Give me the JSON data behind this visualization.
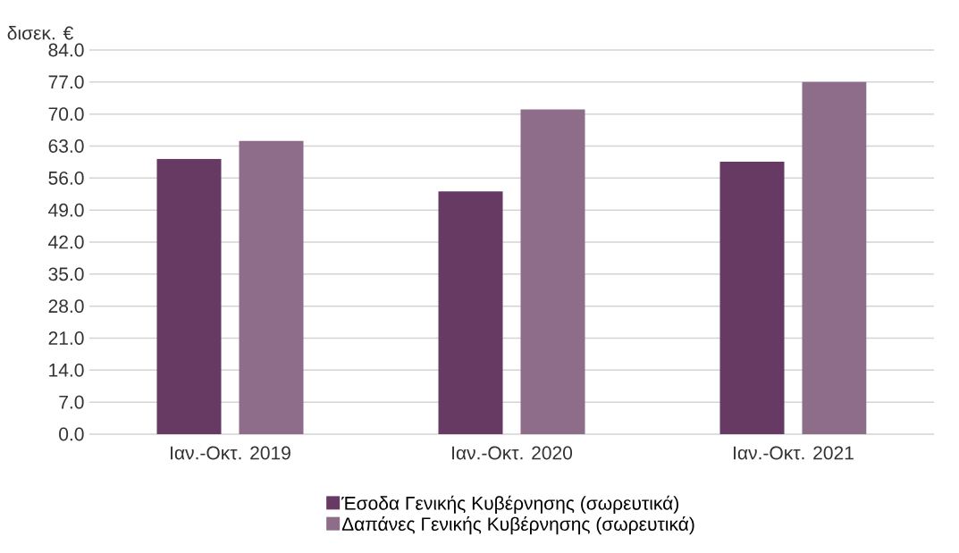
{
  "chart_data": {
    "type": "bar",
    "ylabel": "δισεκ. €",
    "categories": [
      "Ιαν.-Οκτ. 2019",
      "Ιαν.-Οκτ. 2020",
      "Ιαν.-Οκτ. 2021"
    ],
    "series": [
      {
        "name": "Έσοδα Γενικής Κυβέρνησης (σωρευτικά)",
        "color": "#673a63",
        "values": [
          60.2,
          53.1,
          59.6
        ]
      },
      {
        "name": "Δαπάνες Γενικής Κυβέρνησης (σωρευτικά)",
        "color": "#8d6d8a",
        "values": [
          64.1,
          71.0,
          77.0
        ]
      }
    ],
    "ylim": [
      0,
      84
    ],
    "yticks": [
      {
        "value": 0,
        "label": "0.0"
      },
      {
        "value": 7,
        "label": "7.0"
      },
      {
        "value": 14,
        "label": "14.0"
      },
      {
        "value": 21,
        "label": "21.0"
      },
      {
        "value": 28,
        "label": "28.0"
      },
      {
        "value": 35,
        "label": "35.0"
      },
      {
        "value": 42,
        "label": "42.0"
      },
      {
        "value": 49,
        "label": "49.0"
      },
      {
        "value": 56,
        "label": "56.0"
      },
      {
        "value": 63,
        "label": "63.0"
      },
      {
        "value": 70,
        "label": "70.0"
      },
      {
        "value": 77,
        "label": "77.0"
      },
      {
        "value": 84,
        "label": "84.0"
      }
    ],
    "grid": "y",
    "legend": "bottom"
  }
}
